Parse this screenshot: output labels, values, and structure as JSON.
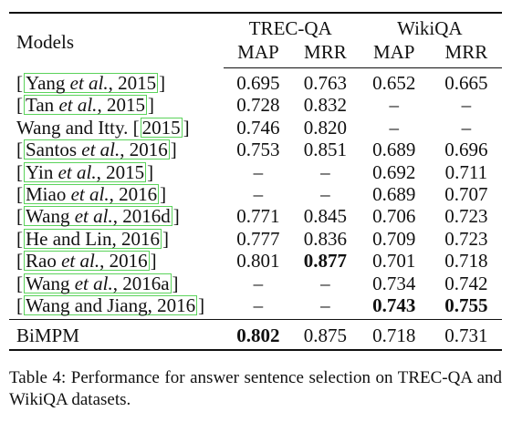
{
  "table": {
    "columns": {
      "models": "Models",
      "group_trec": "TREC-QA",
      "group_wiki": "WikiQA",
      "map": "MAP",
      "mrr": "MRR"
    },
    "rows": [
      {
        "open": "[",
        "cite": "Yang et al., 2015",
        "close": "]",
        "trec_map": "0.695",
        "trec_mrr": "0.763",
        "wiki_map": "0.652",
        "wiki_mrr": "0.665"
      },
      {
        "open": "[",
        "cite": "Tan et al., 2015",
        "close": "]",
        "trec_map": "0.728",
        "trec_mrr": "0.832",
        "wiki_map": "–",
        "wiki_mrr": "–"
      },
      {
        "open": "Wang and Itty. [",
        "cite": "2015",
        "close": "]",
        "trec_map": "0.746",
        "trec_mrr": "0.820",
        "wiki_map": "–",
        "wiki_mrr": "–"
      },
      {
        "open": "[",
        "cite": "Santos et al., 2016",
        "close": "]",
        "trec_map": "0.753",
        "trec_mrr": "0.851",
        "wiki_map": "0.689",
        "wiki_mrr": "0.696"
      },
      {
        "open": "[",
        "cite": "Yin et al., 2015",
        "close": "]",
        "trec_map": "–",
        "trec_mrr": "–",
        "wiki_map": "0.692",
        "wiki_mrr": "0.711"
      },
      {
        "open": "[",
        "cite": "Miao et al., 2016",
        "close": "]",
        "trec_map": "–",
        "trec_mrr": "–",
        "wiki_map": "0.689",
        "wiki_mrr": "0.707"
      },
      {
        "open": "[",
        "cite": "Wang et al., 2016d",
        "close": "]",
        "trec_map": "0.771",
        "trec_mrr": "0.845",
        "wiki_map": "0.706",
        "wiki_mrr": "0.723"
      },
      {
        "open": "[",
        "cite": "He and Lin, 2016",
        "close": "]",
        "trec_map": "0.777",
        "trec_mrr": "0.836",
        "wiki_map": "0.709",
        "wiki_mrr": "0.723"
      },
      {
        "open": "[",
        "cite": "Rao et al., 2016",
        "close": "]",
        "trec_map": "0.801",
        "trec_mrr": "0.877",
        "wiki_map": "0.701",
        "wiki_mrr": "0.718"
      },
      {
        "open": "[",
        "cite": "Wang et al., 2016a",
        "close": "]",
        "trec_map": "–",
        "trec_mrr": "–",
        "wiki_map": "0.734",
        "wiki_mrr": "0.742"
      },
      {
        "open": "[",
        "cite": "Wang and Jiang, 2016",
        "close": "]",
        "trec_map": "–",
        "trec_mrr": "–",
        "wiki_map": "0.743",
        "wiki_mrr": "0.755"
      }
    ],
    "bimpm": {
      "model": "BiMPM",
      "trec_map": "0.802",
      "trec_mrr": "0.875",
      "wiki_map": "0.718",
      "wiki_mrr": "0.731"
    }
  },
  "caption": "Table 4: Performance for answer sentence selection on TREC-QA and WikiQA datasets."
}
